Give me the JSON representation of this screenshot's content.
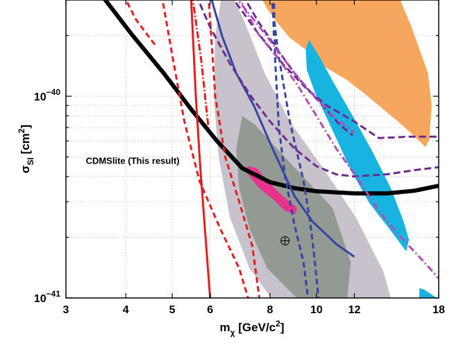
{
  "chart_data": {
    "type": "line",
    "title": "",
    "xlabel": "m_χ [GeV/c²]",
    "ylabel": "σ_SI [cm²]",
    "x_scale": "log",
    "y_scale": "log",
    "xlim": [
      3,
      18
    ],
    "ylim": [
      1e-41,
      3e-40
    ],
    "grid": true,
    "x_ticks": [
      {
        "value": 3,
        "label": "3"
      },
      {
        "value": 4,
        "label": "4"
      },
      {
        "value": 5,
        "label": "5"
      },
      {
        "value": 6,
        "label": "6"
      },
      {
        "value": 8,
        "label": "8"
      },
      {
        "value": 10,
        "label": "10"
      },
      {
        "value": 12,
        "label": "12"
      },
      {
        "value": 18,
        "label": "18"
      }
    ],
    "y_ticks": [
      {
        "value": 1e-41,
        "base": "10",
        "exp": "−41"
      },
      {
        "value": 1e-40,
        "base": "10",
        "exp": "−40"
      }
    ],
    "annotations": [
      {
        "text": "CDMSlite (This result)",
        "x": 3.3,
        "y": 4.8e-41
      }
    ],
    "marker": {
      "symbol": "⊕",
      "x": 8.6,
      "y": 1.92e-41
    },
    "regions": [
      {
        "fill": "#c7c2cb",
        "points": [
          [
            6.35,
            3.2e-40
          ],
          [
            6.75,
            3e-40
          ],
          [
            7.1,
            2.3e-40
          ],
          [
            7.8,
            1.3e-40
          ],
          [
            8.8,
            7.5e-41
          ],
          [
            10.4,
            4.3e-41
          ],
          [
            12.1,
            2.5e-41
          ],
          [
            13.8,
            1.35e-41
          ],
          [
            14.3,
            1e-41
          ],
          [
            8.05,
            1e-41
          ],
          [
            7.25,
            1.4e-41
          ],
          [
            6.6,
            2.5e-41
          ],
          [
            6.25,
            5e-41
          ],
          [
            6.1,
            1e-40
          ],
          [
            6.15,
            2e-40
          ]
        ]
      },
      {
        "fill": "#939993",
        "points": [
          [
            7.0,
            8e-41
          ],
          [
            7.45,
            7.2e-41
          ],
          [
            8.1,
            5.8e-41
          ],
          [
            9.2,
            4.2e-41
          ],
          [
            10.8,
            2.8e-41
          ],
          [
            11.8,
            1.5e-41
          ],
          [
            11.6,
            1e-41
          ],
          [
            9.1,
            1e-41
          ],
          [
            7.9,
            1.4e-41
          ],
          [
            7.25,
            2.2e-41
          ],
          [
            6.9,
            3.5e-41
          ],
          [
            6.8,
            5.5e-41
          ]
        ]
      },
      {
        "fill": "#f7a65e",
        "points": [
          [
            7.6,
            3.2e-40
          ],
          [
            14.8,
            3.2e-40
          ],
          [
            15.8,
            2.2e-40
          ],
          [
            17.1,
            1.3e-40
          ],
          [
            17.4,
            9e-41
          ],
          [
            17.2,
            6.1e-41
          ],
          [
            16.9,
            5.6e-41
          ],
          [
            15.3,
            7e-41
          ],
          [
            12.8,
            1e-40
          ],
          [
            11.6,
            1.2e-40
          ],
          [
            10.4,
            1.4e-40
          ],
          [
            9.5,
            1.7e-40
          ],
          [
            8.8,
            1.95e-40
          ],
          [
            8.3,
            2.3e-40
          ],
          [
            7.9,
            2.7e-40
          ]
        ]
      },
      {
        "fill": "#17b4e1",
        "points": [
          [
            9.65,
            1.9e-40
          ],
          [
            10.1,
            1.6e-40
          ],
          [
            10.9,
            1.15e-40
          ],
          [
            11.9,
            8e-41
          ],
          [
            13.1,
            5.3e-41
          ],
          [
            14.3,
            3.5e-41
          ],
          [
            15.2,
            2.4e-41
          ],
          [
            15.6,
            1.95e-41
          ],
          [
            15.4,
            1.7e-41
          ],
          [
            14.2,
            2.2e-41
          ],
          [
            12.9,
            2.95e-41
          ],
          [
            11.8,
            4.3e-41
          ],
          [
            10.8,
            6.8e-41
          ],
          [
            10.0,
            1e-40
          ],
          [
            9.55,
            1.35e-40
          ],
          [
            9.5,
            1.7e-40
          ]
        ]
      },
      {
        "fill": "#17b4e1",
        "points": [
          [
            16.4,
            1.12e-41
          ],
          [
            16.8,
            1.1e-41
          ],
          [
            17.5,
            1.03e-41
          ],
          [
            17.8,
            1e-41
          ],
          [
            16.4,
            1e-41
          ]
        ]
      },
      {
        "fill": "#e8338c",
        "points": [
          [
            7.2,
            4.5e-41
          ],
          [
            7.5,
            4.4e-41
          ],
          [
            7.9,
            3.8e-41
          ],
          [
            8.5,
            3.2e-41
          ],
          [
            9.1,
            2.8e-41
          ],
          [
            9.05,
            2.6e-41
          ],
          [
            8.6,
            2.7e-41
          ],
          [
            8.1,
            3.1e-41
          ],
          [
            7.6,
            3.5e-41
          ],
          [
            7.25,
            4e-41
          ],
          [
            7.1,
            4.35e-41
          ]
        ]
      }
    ],
    "series": [
      {
        "color": "#000000",
        "width": 6,
        "dash": "",
        "points": [
          [
            3.55,
            3.2e-40
          ],
          [
            4.1,
            2.05e-40
          ],
          [
            4.8,
            1.3e-40
          ],
          [
            5.5,
            8.5e-41
          ],
          [
            6.2,
            6e-41
          ],
          [
            7.0,
            4.4e-41
          ],
          [
            8.0,
            3.75e-41
          ],
          [
            9.0,
            3.5e-41
          ],
          [
            10.0,
            3.38e-41
          ],
          [
            12.0,
            3.3e-41
          ],
          [
            14.0,
            3.3e-41
          ],
          [
            16.0,
            3.4e-41
          ],
          [
            18.0,
            3.6e-41
          ]
        ]
      },
      {
        "color": "#e41d1d",
        "width": 3,
        "dash": "",
        "points": [
          [
            5.47,
            3.2e-40
          ],
          [
            5.6,
            1e-40
          ],
          [
            5.72,
            4.5e-41
          ],
          [
            5.85,
            2.2e-41
          ],
          [
            6.0,
            1e-41
          ]
        ]
      },
      {
        "color": "#e41d1d",
        "width": 3,
        "dash": "8,5",
        "points": [
          [
            4.75,
            3.2e-40
          ],
          [
            5.0,
            1.6e-40
          ],
          [
            5.3,
            7.5e-41
          ],
          [
            5.7,
            3.8e-41
          ],
          [
            6.3,
            2.2e-41
          ],
          [
            6.9,
            1.4e-41
          ],
          [
            7.2,
            1e-41
          ]
        ]
      },
      {
        "color": "#e41d1d",
        "width": 3,
        "dash": "8,5",
        "points": [
          [
            5.95,
            3.2e-40
          ],
          [
            6.15,
            1e-40
          ],
          [
            6.45,
            5e-41
          ],
          [
            6.9,
            3e-41
          ],
          [
            7.35,
            1.8e-41
          ],
          [
            7.6,
            1e-41
          ]
        ]
      },
      {
        "color": "#e41d1d",
        "width": 3,
        "dash": "8,5",
        "points": [
          [
            3.95,
            3.2e-40
          ],
          [
            4.2,
            2.4e-40
          ],
          [
            4.6,
            1.8e-40
          ]
        ]
      },
      {
        "color": "#e41d1d",
        "width": 3,
        "dash": "10,3,2,3",
        "points": [
          [
            5.5,
            3.2e-40
          ],
          [
            5.75,
            1.5e-40
          ],
          [
            5.95,
            7e-41
          ]
        ]
      },
      {
        "color": "#3544a0",
        "width": 3,
        "dash": "",
        "points": [
          [
            6.0,
            3.2e-40
          ],
          [
            6.35,
            2e-40
          ],
          [
            6.8,
            1.3e-40
          ],
          [
            7.4,
            9e-41
          ],
          [
            8.1,
            5.5e-41
          ],
          [
            9.0,
            3.2e-41
          ],
          [
            9.8,
            2.4e-41
          ],
          [
            11.0,
            1.85e-41
          ],
          [
            12.0,
            1.6e-41
          ]
        ]
      },
      {
        "color": "#3544a0",
        "width": 3,
        "dash": "8,5",
        "points": [
          [
            8.15,
            3.2e-40
          ],
          [
            8.2,
            1.5e-40
          ],
          [
            8.35,
            7e-41
          ],
          [
            8.6,
            4e-41
          ],
          [
            9.0,
            2.3e-41
          ],
          [
            9.4,
            1.5e-41
          ],
          [
            9.6,
            1e-41
          ]
        ]
      },
      {
        "color": "#3544a0",
        "width": 3,
        "dash": "8,5",
        "points": [
          [
            8.05,
            3.2e-40
          ],
          [
            8.3,
            1.7e-40
          ],
          [
            8.8,
            7.5e-41
          ],
          [
            9.4,
            3.8e-41
          ],
          [
            9.7,
            2.4e-41
          ],
          [
            9.9,
            1.6e-41
          ],
          [
            10.1,
            1e-41
          ]
        ]
      },
      {
        "color": "#3544a0",
        "width": 3,
        "dash": "8,5",
        "points": [
          [
            8.1,
            3.2e-40
          ],
          [
            8.15,
            2e-40
          ]
        ]
      },
      {
        "color": "#6a2c8f",
        "width": 3,
        "dash": "10,5",
        "points": [
          [
            5.6,
            3.2e-40
          ],
          [
            6.0,
            2.2e-40
          ],
          [
            6.6,
            1.45e-40
          ],
          [
            7.3,
            1e-40
          ],
          [
            8.0,
            7.5e-41
          ],
          [
            9.0,
            5.5e-41
          ],
          [
            10.0,
            4.5e-41
          ],
          [
            11.0,
            4.1e-41
          ],
          [
            12.0,
            4e-41
          ],
          [
            14.0,
            4.1e-41
          ],
          [
            16.0,
            4.3e-41
          ],
          [
            18.0,
            4.45e-41
          ]
        ]
      },
      {
        "color": "#6a2c8f",
        "width": 3,
        "dash": "10,5",
        "points": [
          [
            6.6,
            3.2e-40
          ],
          [
            7.5,
            2.1e-40
          ],
          [
            8.5,
            1.45e-40
          ],
          [
            9.5,
            1.1e-40
          ],
          [
            10.5,
            9e-41
          ],
          [
            12.0,
            7.5e-41
          ],
          [
            13.5,
            6.2e-41
          ],
          [
            15.5,
            6.3e-41
          ],
          [
            18.0,
            6.3e-41
          ]
        ]
      },
      {
        "color": "#6a2c8f",
        "width": 3,
        "dash": "10,5",
        "points": [
          [
            7.0,
            3.2e-40
          ],
          [
            7.6,
            2.3e-40
          ],
          [
            8.3,
            1.7e-40
          ],
          [
            9.0,
            1.3e-40
          ],
          [
            9.7,
            1.05e-40
          ],
          [
            10.4,
            8.8e-41
          ],
          [
            11.2,
            7.2e-41
          ],
          [
            11.9,
            6.4e-41
          ]
        ]
      },
      {
        "color": "#b14db6",
        "width": 3,
        "dash": "10,4,2,4",
        "points": [
          [
            6.7,
            3.2e-40
          ],
          [
            7.4,
            2.4e-40
          ],
          [
            8.2,
            1.75e-40
          ],
          [
            9.0,
            1.3e-40
          ],
          [
            9.9,
            1e-40
          ],
          [
            10.7,
            8.2e-41
          ],
          [
            11.6,
            7e-41
          ],
          [
            12.0,
            6.6e-41
          ]
        ]
      },
      {
        "color": "#b14db6",
        "width": 3,
        "dash": "10,4,2,4",
        "points": [
          [
            6.85,
            3.2e-40
          ],
          [
            7.15,
            2.6e-40
          ],
          [
            7.6,
            2e-40
          ],
          [
            8.3,
            1.55e-40
          ],
          [
            9.1,
            1.15e-40
          ],
          [
            10.0,
            8e-41
          ],
          [
            11.0,
            5.5e-41
          ],
          [
            12.2,
            3.9e-41
          ],
          [
            13.5,
            2.7e-41
          ],
          [
            15.0,
            2e-41
          ],
          [
            16.4,
            1.6e-41
          ],
          [
            18.0,
            1.25e-41
          ]
        ]
      },
      {
        "color": "#b14db6",
        "width": 3,
        "dash": "10,4,2,4",
        "points": [
          [
            11.7,
            3.2e-40
          ],
          [
            12.0,
            3e-40
          ]
        ]
      }
    ]
  }
}
